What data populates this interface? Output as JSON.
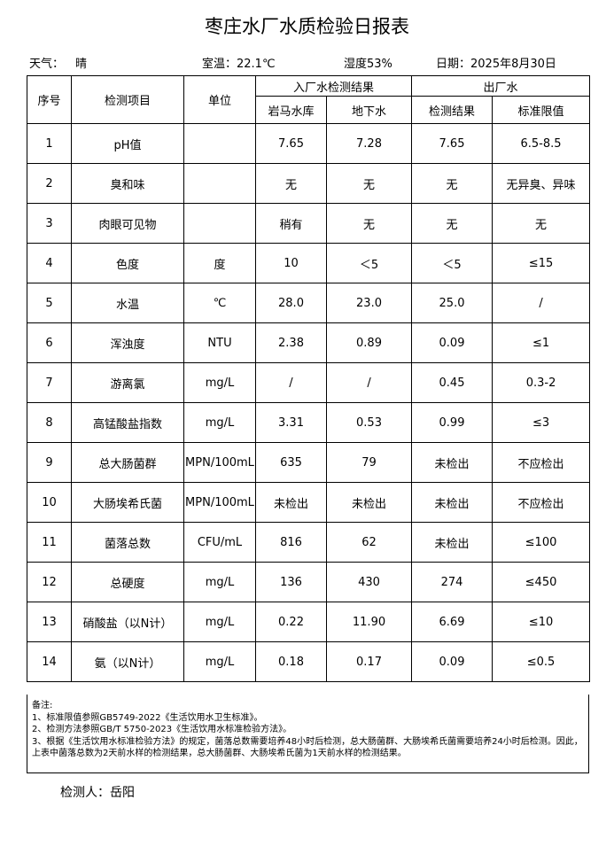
{
  "title": "枣庄水厂水质检验日报表",
  "info": {
    "weather_label": "天气：",
    "weather": "晴",
    "temperature": "室温：22.1℃",
    "humidity": "湿度53%",
    "date": "日期：2025年8月30日"
  },
  "table": {
    "columns": [
      "序号",
      "检测项目",
      "单位"
    ],
    "groups": [
      "入厂水检测结果",
      "出厂水"
    ],
    "subcolumns": [
      "岩马水库",
      "地下水",
      "检测结果",
      "标准限值"
    ],
    "rows": [
      [
        "1",
        "pH值",
        null,
        "7.65",
        "7.28",
        "7.65",
        "6.5-8.5"
      ],
      [
        "2",
        "臭和味",
        null,
        "无",
        "无",
        "无",
        "无异臭、异味"
      ],
      [
        "3",
        "肉眼可见物",
        null,
        "稍有",
        "无",
        "无",
        "无"
      ],
      [
        "4",
        "色度",
        "度",
        "10",
        "＜5",
        "＜5",
        "≤15"
      ],
      [
        "5",
        "水温",
        "℃",
        "28.0",
        "23.0",
        "25.0",
        "/"
      ],
      [
        "6",
        "浑浊度",
        "NTU",
        "2.38",
        "0.89",
        "0.09",
        "≤1"
      ],
      [
        "7",
        "游离氯",
        "mg/L",
        "/",
        "/",
        "0.45",
        "0.3-2"
      ],
      [
        "8",
        "高锰酸盐指数",
        "mg/L",
        "3.31",
        "0.53",
        "0.99",
        "≤3"
      ],
      [
        "9",
        "总大肠菌群",
        "MPN/100mL",
        "635",
        "79",
        "未检出",
        "不应检出"
      ],
      [
        "10",
        "大肠埃希氏菌",
        "MPN/100mL",
        "未检出",
        "未检出",
        "未检出",
        "不应检出"
      ],
      [
        "11",
        "菌落总数",
        "CFU/mL",
        "816",
        "62",
        "未检出",
        "≤100"
      ],
      [
        "12",
        "总硬度",
        "mg/L",
        "136",
        "430",
        "274",
        "≤450"
      ],
      [
        "13",
        "硝酸盐（以N计）",
        "mg/L",
        "0.22",
        "11.90",
        "6.69",
        "≤10"
      ],
      [
        "14",
        "氨（以N计）",
        "mg/L",
        "0.18",
        "0.17",
        "0.09",
        "≤0.5"
      ]
    ]
  },
  "notes": {
    "title": "备注:",
    "lines": [
      "1、标准限值参照GB5749-2022《生活饮用水卫生标准》。",
      "2、检测方法参照GB/T 5750-2023《生活饮用水标准检验方法》。",
      "3、根据《生活饮用水标准检验方法》的规定，菌落总数需要培养48小时后检测，总大肠菌群、大肠埃希氏菌需要培养24小时后检测。因此，上表中菌落总数为2天前水样的检测结果，总大肠菌群、大肠埃希氏菌为1天前水样的检测结果。"
    ]
  },
  "inspector": "检测人：岳阳"
}
